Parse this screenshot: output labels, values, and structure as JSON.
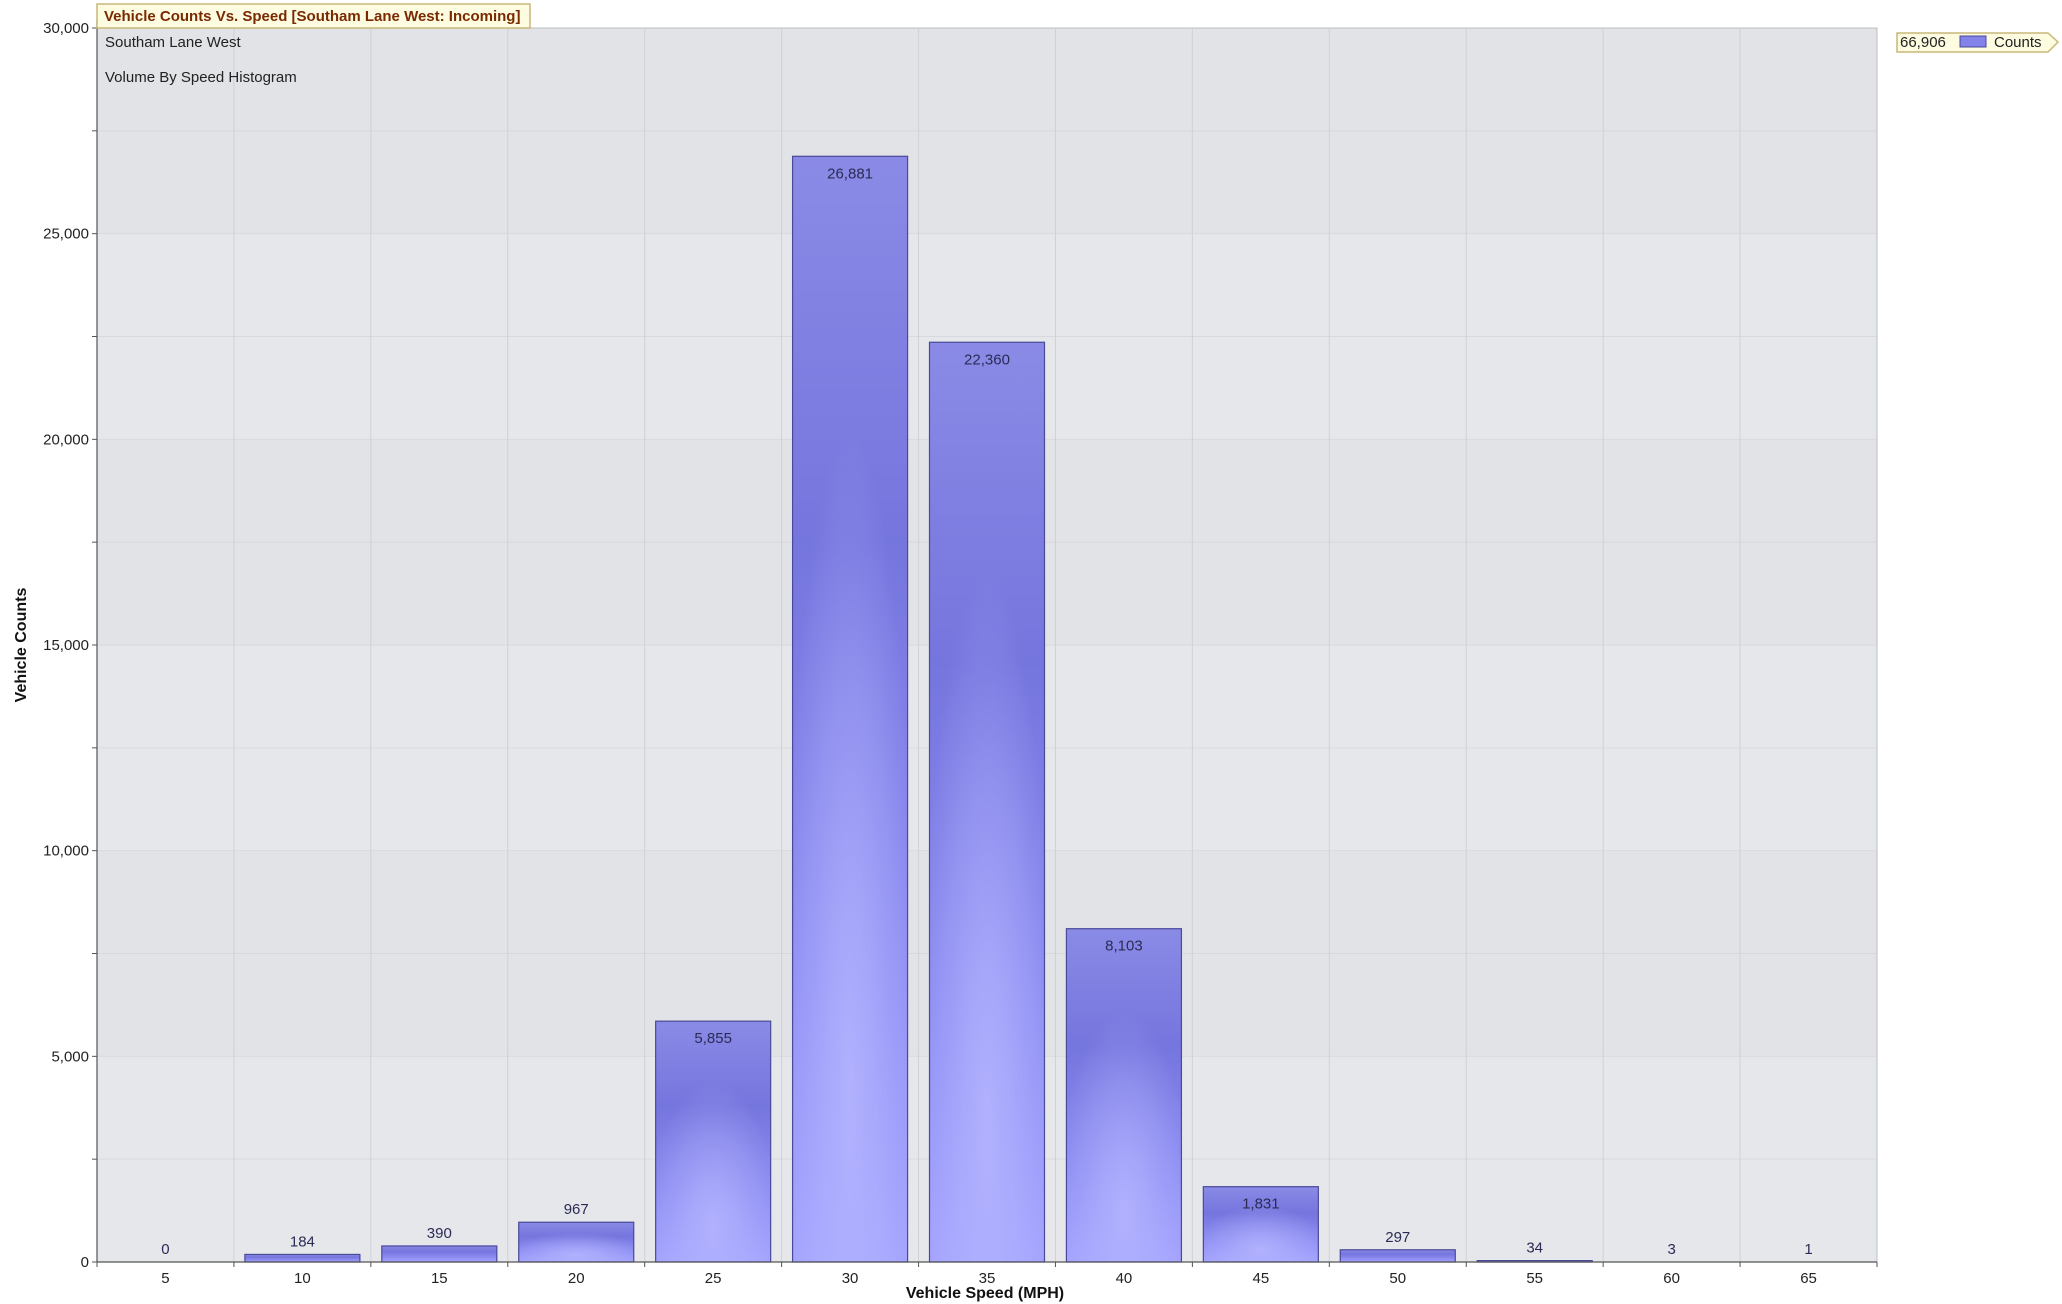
{
  "chart_data": {
    "type": "bar",
    "title": "Vehicle Counts Vs. Speed [Southam Lane West: Incoming]",
    "subtitle_lines": [
      "Southam Lane West",
      "Volume By Speed Histogram"
    ],
    "xlabel": "Vehicle Speed (MPH)",
    "ylabel": "Vehicle Counts",
    "categories": [
      "5",
      "10",
      "15",
      "20",
      "25",
      "30",
      "35",
      "40",
      "45",
      "50",
      "55",
      "60",
      "65"
    ],
    "values": [
      0,
      184,
      390,
      967,
      5855,
      26881,
      22360,
      8103,
      1831,
      297,
      34,
      3,
      1
    ],
    "data_labels": [
      "0",
      "184",
      "390",
      "967",
      "5,855",
      "26,881",
      "22,360",
      "8,103",
      "1,831",
      "297",
      "34",
      "3",
      "1"
    ],
    "ylim": [
      0,
      30000
    ],
    "y_tick_labels": [
      "0",
      "5,000",
      "10,000",
      "15,000",
      "20,000",
      "25,000",
      "30,000"
    ],
    "y_tick_values": [
      0,
      5000,
      10000,
      15000,
      20000,
      25000,
      30000
    ],
    "grid": true,
    "legend": {
      "placement": "top-right",
      "total_label": "66,906",
      "series_name": "Counts"
    },
    "colors": {
      "bar_light": "#a8a8ff",
      "bar_mid": "#8383ea",
      "bar_dark": "#6f6fd8",
      "bar_stroke": "#4a4a9a",
      "plot_band_a": "#e5e7eb",
      "plot_band_b": "#e2e3e6",
      "gridline": "#cfd1d6",
      "title_bg": "#fdfbe0",
      "title_border": "#c8b87a"
    }
  }
}
